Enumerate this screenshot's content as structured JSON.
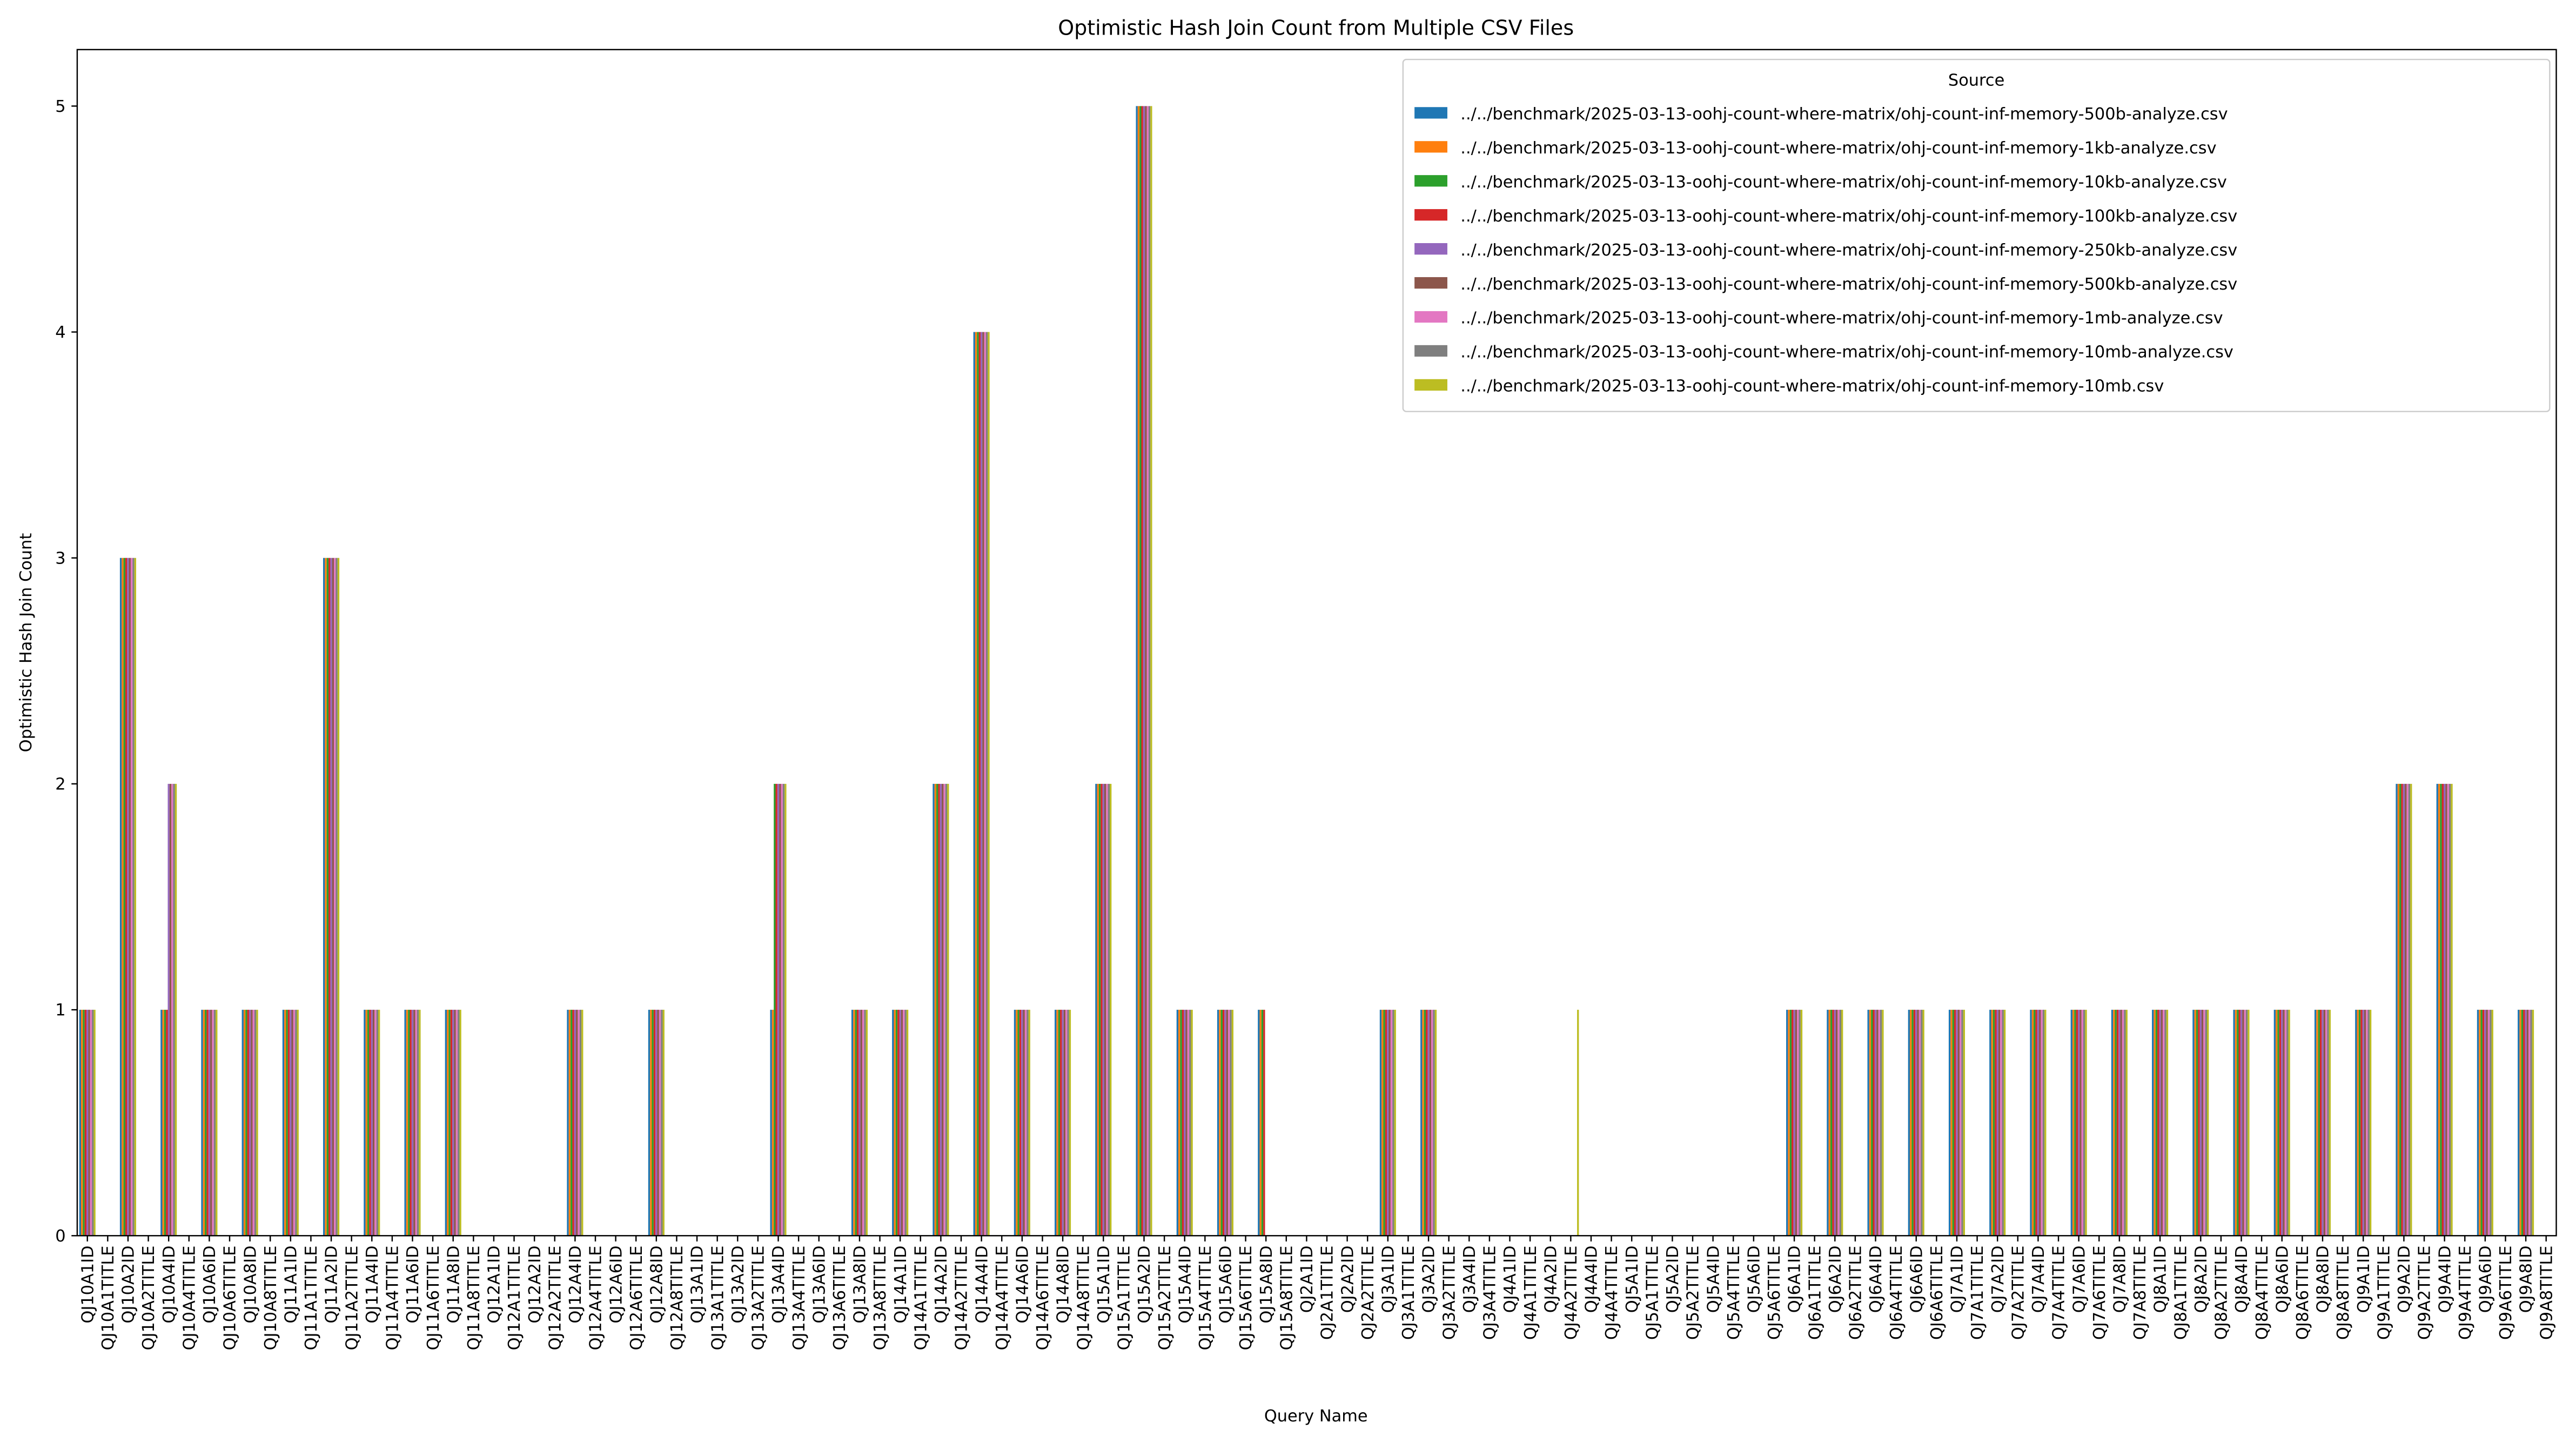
{
  "chart_data": {
    "type": "bar",
    "title": "Optimistic Hash Join Count from Multiple CSV Files",
    "x_label": "Query Name",
    "y_label": "Optimistic Hash Join Count",
    "legend_title": "Source",
    "legend_position": "upper right",
    "grid": false,
    "ylim": [
      0,
      5.25
    ],
    "yticks": [
      0,
      1,
      2,
      3,
      4,
      5
    ],
    "categories": [
      "QJ10A1ID",
      "QJ10A1TITLE",
      "QJ10A2ID",
      "QJ10A2TITLE",
      "QJ10A4ID",
      "QJ10A4TITLE",
      "QJ10A6ID",
      "QJ10A6TITLE",
      "QJ10A8ID",
      "QJ10A8TITLE",
      "QJ11A1ID",
      "QJ11A1TITLE",
      "QJ11A2ID",
      "QJ11A2TITLE",
      "QJ11A4ID",
      "QJ11A4TITLE",
      "QJ11A6ID",
      "QJ11A6TITLE",
      "QJ11A8ID",
      "QJ11A8TITLE",
      "QJ12A1ID",
      "QJ12A1TITLE",
      "QJ12A2ID",
      "QJ12A2TITLE",
      "QJ12A4ID",
      "QJ12A4TITLE",
      "QJ12A6ID",
      "QJ12A6TITLE",
      "QJ12A8ID",
      "QJ12A8TITLE",
      "QJ13A1ID",
      "QJ13A1TITLE",
      "QJ13A2ID",
      "QJ13A2TITLE",
      "QJ13A4ID",
      "QJ13A4TITLE",
      "QJ13A6ID",
      "QJ13A6TITLE",
      "QJ13A8ID",
      "QJ13A8TITLE",
      "QJ14A1ID",
      "QJ14A1TITLE",
      "QJ14A2ID",
      "QJ14A2TITLE",
      "QJ14A4ID",
      "QJ14A4TITLE",
      "QJ14A6ID",
      "QJ14A6TITLE",
      "QJ14A8ID",
      "QJ14A8TITLE",
      "QJ15A1ID",
      "QJ15A1TITLE",
      "QJ15A2ID",
      "QJ15A2TITLE",
      "QJ15A4ID",
      "QJ15A4TITLE",
      "QJ15A6ID",
      "QJ15A6TITLE",
      "QJ15A8ID",
      "QJ15A8TITLE",
      "QJ2A1ID",
      "QJ2A1TITLE",
      "QJ2A2ID",
      "QJ2A2TITLE",
      "QJ3A1ID",
      "QJ3A1TITLE",
      "QJ3A2ID",
      "QJ3A2TITLE",
      "QJ3A4ID",
      "QJ3A4TITLE",
      "QJ4A1ID",
      "QJ4A1TITLE",
      "QJ4A2ID",
      "QJ4A2TITLE",
      "QJ4A4ID",
      "QJ4A4TITLE",
      "QJ5A1ID",
      "QJ5A1TITLE",
      "QJ5A2ID",
      "QJ5A2TITLE",
      "QJ5A4ID",
      "QJ5A4TITLE",
      "QJ5A6ID",
      "QJ5A6TITLE",
      "QJ6A1ID",
      "QJ6A1TITLE",
      "QJ6A2ID",
      "QJ6A2TITLE",
      "QJ6A4ID",
      "QJ6A4TITLE",
      "QJ6A6ID",
      "QJ6A6TITLE",
      "QJ7A1ID",
      "QJ7A1TITLE",
      "QJ7A2ID",
      "QJ7A2TITLE",
      "QJ7A4ID",
      "QJ7A4TITLE",
      "QJ7A6ID",
      "QJ7A6TITLE",
      "QJ7A8ID",
      "QJ7A8TITLE",
      "QJ8A1ID",
      "QJ8A1TITLE",
      "QJ8A2ID",
      "QJ8A2TITLE",
      "QJ8A4ID",
      "QJ8A4TITLE",
      "QJ8A6ID",
      "QJ8A6TITLE",
      "QJ8A8ID",
      "QJ8A8TITLE",
      "QJ9A1ID",
      "QJ9A1TITLE",
      "QJ9A2ID",
      "QJ9A2TITLE",
      "QJ9A4ID",
      "QJ9A4TITLE",
      "QJ9A6ID",
      "QJ9A6TITLE",
      "QJ9A8ID",
      "QJ9A8TITLE"
    ],
    "series": [
      {
        "name": "../../benchmark/2025-03-13-oohj-count-where-matrix/ohj-count-inf-memory-500b-analyze.csv",
        "color": "#1f77b4",
        "values": [
          1,
          0,
          3,
          0,
          1,
          0,
          1,
          0,
          1,
          0,
          1,
          0,
          3,
          0,
          1,
          0,
          1,
          0,
          1,
          0,
          0,
          0,
          0,
          0,
          1,
          0,
          0,
          0,
          1,
          0,
          0,
          0,
          0,
          0,
          1,
          0,
          0,
          0,
          1,
          0,
          1,
          0,
          2,
          0,
          4,
          0,
          1,
          0,
          1,
          0,
          2,
          0,
          5,
          0,
          1,
          0,
          1,
          0,
          1,
          0,
          0,
          0,
          0,
          0,
          1,
          0,
          1,
          0,
          0,
          0,
          0,
          0,
          0,
          0,
          0,
          0,
          0,
          0,
          0,
          0,
          0,
          0,
          0,
          0,
          1,
          0,
          1,
          0,
          1,
          0,
          1,
          0,
          1,
          0,
          1,
          0,
          1,
          0,
          1,
          0,
          1,
          0,
          1,
          0,
          1,
          0,
          1,
          0,
          1,
          0,
          1,
          0,
          1,
          0,
          2,
          0,
          2,
          0,
          1,
          0,
          1,
          0
        ]
      },
      {
        "name": "../../benchmark/2025-03-13-oohj-count-where-matrix/ohj-count-inf-memory-1kb-analyze.csv",
        "color": "#ff7f0e",
        "values": [
          1,
          0,
          3,
          0,
          1,
          0,
          1,
          0,
          1,
          0,
          1,
          0,
          3,
          0,
          1,
          0,
          1,
          0,
          1,
          0,
          0,
          0,
          0,
          0,
          1,
          0,
          0,
          0,
          1,
          0,
          0,
          0,
          0,
          0,
          1,
          0,
          0,
          0,
          1,
          0,
          1,
          0,
          2,
          0,
          4,
          0,
          1,
          0,
          1,
          0,
          2,
          0,
          5,
          0,
          1,
          0,
          1,
          0,
          1,
          0,
          0,
          0,
          0,
          0,
          1,
          0,
          1,
          0,
          0,
          0,
          0,
          0,
          0,
          0,
          0,
          0,
          0,
          0,
          0,
          0,
          0,
          0,
          0,
          0,
          1,
          0,
          1,
          0,
          1,
          0,
          1,
          0,
          1,
          0,
          1,
          0,
          1,
          0,
          1,
          0,
          1,
          0,
          1,
          0,
          1,
          0,
          1,
          0,
          1,
          0,
          1,
          0,
          1,
          0,
          2,
          0,
          2,
          0,
          1,
          0,
          1,
          0
        ]
      },
      {
        "name": "../../benchmark/2025-03-13-oohj-count-where-matrix/ohj-count-inf-memory-10kb-analyze.csv",
        "color": "#2ca02c",
        "values": [
          1,
          0,
          3,
          0,
          1,
          0,
          1,
          0,
          1,
          0,
          1,
          0,
          3,
          0,
          1,
          0,
          1,
          0,
          1,
          0,
          0,
          0,
          0,
          0,
          1,
          0,
          0,
          0,
          1,
          0,
          0,
          0,
          0,
          0,
          2,
          0,
          0,
          0,
          1,
          0,
          1,
          0,
          2,
          0,
          4,
          0,
          1,
          0,
          1,
          0,
          2,
          0,
          5,
          0,
          1,
          0,
          1,
          0,
          1,
          0,
          0,
          0,
          0,
          0,
          1,
          0,
          1,
          0,
          0,
          0,
          0,
          0,
          0,
          0,
          0,
          0,
          0,
          0,
          0,
          0,
          0,
          0,
          0,
          0,
          1,
          0,
          1,
          0,
          1,
          0,
          1,
          0,
          1,
          0,
          1,
          0,
          1,
          0,
          1,
          0,
          1,
          0,
          1,
          0,
          1,
          0,
          1,
          0,
          1,
          0,
          1,
          0,
          1,
          0,
          2,
          0,
          2,
          0,
          1,
          0,
          1,
          0
        ]
      },
      {
        "name": "../../benchmark/2025-03-13-oohj-count-where-matrix/ohj-count-inf-memory-100kb-analyze.csv",
        "color": "#d62728",
        "values": [
          1,
          0,
          3,
          0,
          1,
          0,
          1,
          0,
          1,
          0,
          1,
          0,
          3,
          0,
          1,
          0,
          1,
          0,
          1,
          0,
          0,
          0,
          0,
          0,
          1,
          0,
          0,
          0,
          1,
          0,
          0,
          0,
          0,
          0,
          2,
          0,
          0,
          0,
          1,
          0,
          1,
          0,
          2,
          0,
          4,
          0,
          1,
          0,
          1,
          0,
          2,
          0,
          5,
          0,
          1,
          0,
          1,
          0,
          1,
          0,
          0,
          0,
          0,
          0,
          1,
          0,
          1,
          0,
          0,
          0,
          0,
          0,
          0,
          0,
          0,
          0,
          0,
          0,
          0,
          0,
          0,
          0,
          0,
          0,
          1,
          0,
          1,
          0,
          1,
          0,
          1,
          0,
          1,
          0,
          1,
          0,
          1,
          0,
          1,
          0,
          1,
          0,
          1,
          0,
          1,
          0,
          1,
          0,
          1,
          0,
          1,
          0,
          1,
          0,
          2,
          0,
          2,
          0,
          1,
          0,
          1,
          0
        ]
      },
      {
        "name": "../../benchmark/2025-03-13-oohj-count-where-matrix/ohj-count-inf-memory-250kb-analyze.csv",
        "color": "#9467bd",
        "values": [
          1,
          0,
          3,
          0,
          2,
          0,
          1,
          0,
          1,
          0,
          1,
          0,
          3,
          0,
          1,
          0,
          1,
          0,
          1,
          0,
          0,
          0,
          0,
          0,
          1,
          0,
          0,
          0,
          1,
          0,
          0,
          0,
          0,
          0,
          2,
          0,
          0,
          0,
          1,
          0,
          1,
          0,
          2,
          0,
          4,
          0,
          1,
          0,
          1,
          0,
          2,
          0,
          5,
          0,
          1,
          0,
          1,
          0,
          0,
          0,
          0,
          0,
          0,
          0,
          1,
          0,
          1,
          0,
          0,
          0,
          0,
          0,
          0,
          0,
          0,
          0,
          0,
          0,
          0,
          0,
          0,
          0,
          0,
          0,
          1,
          0,
          1,
          0,
          1,
          0,
          1,
          0,
          1,
          0,
          1,
          0,
          1,
          0,
          1,
          0,
          1,
          0,
          1,
          0,
          1,
          0,
          1,
          0,
          1,
          0,
          1,
          0,
          1,
          0,
          2,
          0,
          2,
          0,
          1,
          0,
          1,
          0
        ]
      },
      {
        "name": "../../benchmark/2025-03-13-oohj-count-where-matrix/ohj-count-inf-memory-500kb-analyze.csv",
        "color": "#8c564b",
        "values": [
          1,
          0,
          3,
          0,
          2,
          0,
          1,
          0,
          1,
          0,
          1,
          0,
          3,
          0,
          1,
          0,
          1,
          0,
          1,
          0,
          0,
          0,
          0,
          0,
          1,
          0,
          0,
          0,
          1,
          0,
          0,
          0,
          0,
          0,
          2,
          0,
          0,
          0,
          1,
          0,
          1,
          0,
          2,
          0,
          4,
          0,
          1,
          0,
          1,
          0,
          2,
          0,
          5,
          0,
          1,
          0,
          1,
          0,
          0,
          0,
          0,
          0,
          0,
          0,
          1,
          0,
          1,
          0,
          0,
          0,
          0,
          0,
          0,
          0,
          0,
          0,
          0,
          0,
          0,
          0,
          0,
          0,
          0,
          0,
          1,
          0,
          1,
          0,
          1,
          0,
          1,
          0,
          1,
          0,
          1,
          0,
          1,
          0,
          1,
          0,
          1,
          0,
          1,
          0,
          1,
          0,
          1,
          0,
          1,
          0,
          1,
          0,
          1,
          0,
          2,
          0,
          2,
          0,
          1,
          0,
          1,
          0
        ]
      },
      {
        "name": "../../benchmark/2025-03-13-oohj-count-where-matrix/ohj-count-inf-memory-1mb-analyze.csv",
        "color": "#e377c2",
        "values": [
          1,
          0,
          3,
          0,
          2,
          0,
          1,
          0,
          1,
          0,
          1,
          0,
          3,
          0,
          1,
          0,
          1,
          0,
          1,
          0,
          0,
          0,
          0,
          0,
          1,
          0,
          0,
          0,
          1,
          0,
          0,
          0,
          0,
          0,
          2,
          0,
          0,
          0,
          1,
          0,
          1,
          0,
          2,
          0,
          4,
          0,
          1,
          0,
          1,
          0,
          2,
          0,
          5,
          0,
          1,
          0,
          1,
          0,
          0,
          0,
          0,
          0,
          0,
          0,
          1,
          0,
          1,
          0,
          0,
          0,
          0,
          0,
          0,
          0,
          0,
          0,
          0,
          0,
          0,
          0,
          0,
          0,
          0,
          0,
          1,
          0,
          1,
          0,
          1,
          0,
          1,
          0,
          1,
          0,
          1,
          0,
          1,
          0,
          1,
          0,
          1,
          0,
          1,
          0,
          1,
          0,
          1,
          0,
          1,
          0,
          1,
          0,
          1,
          0,
          2,
          0,
          2,
          0,
          1,
          0,
          1,
          0
        ]
      },
      {
        "name": "../../benchmark/2025-03-13-oohj-count-where-matrix/ohj-count-inf-memory-10mb-analyze.csv",
        "color": "#7f7f7f",
        "values": [
          1,
          0,
          3,
          0,
          2,
          0,
          1,
          0,
          1,
          0,
          1,
          0,
          3,
          0,
          1,
          0,
          1,
          0,
          1,
          0,
          0,
          0,
          0,
          0,
          1,
          0,
          0,
          0,
          1,
          0,
          0,
          0,
          0,
          0,
          2,
          0,
          0,
          0,
          1,
          0,
          1,
          0,
          2,
          0,
          4,
          0,
          1,
          0,
          1,
          0,
          2,
          0,
          5,
          0,
          1,
          0,
          1,
          0,
          0,
          0,
          0,
          0,
          0,
          0,
          1,
          0,
          1,
          0,
          0,
          0,
          0,
          0,
          0,
          0,
          0,
          0,
          0,
          0,
          0,
          0,
          0,
          0,
          0,
          0,
          1,
          0,
          1,
          0,
          1,
          0,
          1,
          0,
          1,
          0,
          1,
          0,
          1,
          0,
          1,
          0,
          1,
          0,
          1,
          0,
          1,
          0,
          1,
          0,
          1,
          0,
          1,
          0,
          1,
          0,
          2,
          0,
          2,
          0,
          1,
          0,
          1,
          0
        ]
      },
      {
        "name": "../../benchmark/2025-03-13-oohj-count-where-matrix/ohj-count-inf-memory-10mb.csv",
        "color": "#bcbd22",
        "values": [
          1,
          0,
          3,
          0,
          2,
          0,
          1,
          0,
          1,
          0,
          1,
          0,
          3,
          0,
          1,
          0,
          1,
          0,
          1,
          0,
          0,
          0,
          0,
          0,
          1,
          0,
          0,
          0,
          1,
          0,
          0,
          0,
          0,
          0,
          2,
          0,
          0,
          0,
          1,
          0,
          1,
          0,
          2,
          0,
          4,
          0,
          1,
          0,
          1,
          0,
          2,
          0,
          5,
          0,
          1,
          0,
          1,
          0,
          0,
          0,
          0,
          0,
          0,
          0,
          1,
          0,
          1,
          0,
          0,
          0,
          0,
          0,
          0,
          1,
          0,
          0,
          0,
          0,
          0,
          0,
          0,
          0,
          0,
          0,
          1,
          0,
          1,
          0,
          1,
          0,
          1,
          0,
          1,
          0,
          1,
          0,
          1,
          0,
          1,
          0,
          1,
          0,
          1,
          0,
          1,
          0,
          1,
          0,
          1,
          0,
          1,
          0,
          1,
          0,
          2,
          0,
          2,
          0,
          1,
          0,
          1,
          0
        ]
      }
    ]
  }
}
